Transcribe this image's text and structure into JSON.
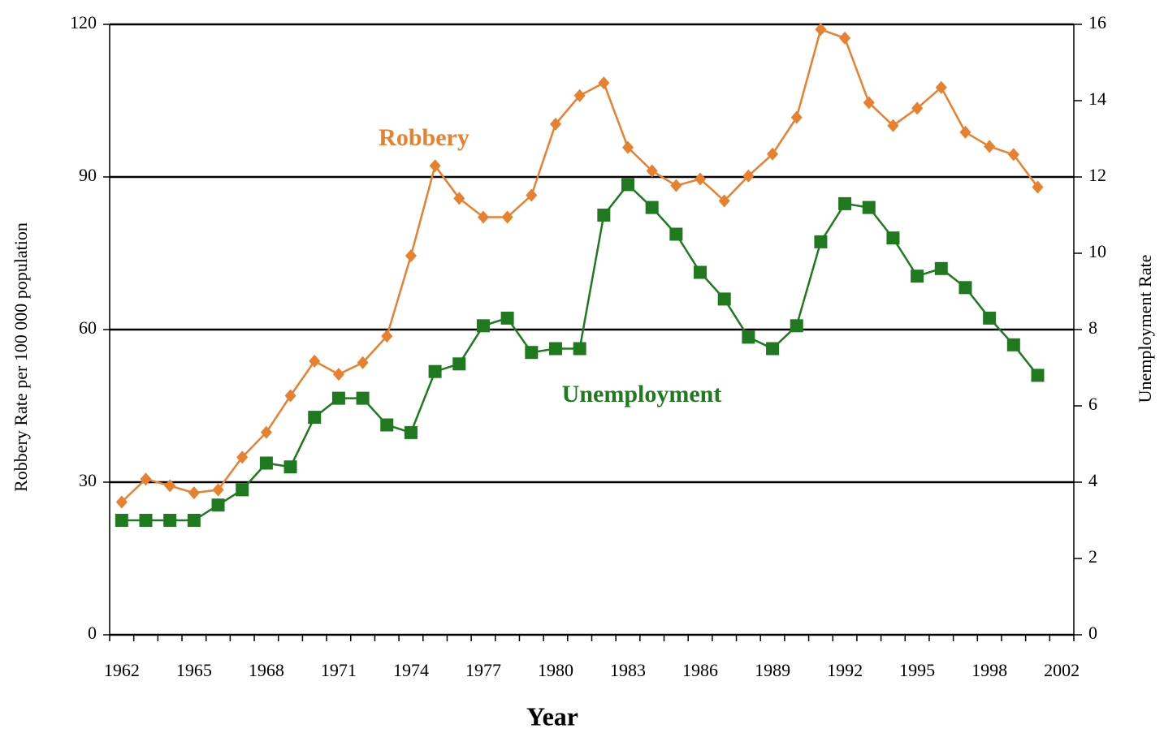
{
  "chart_data": {
    "type": "line",
    "x_label": "Year",
    "y_label": "Robbery Rate per 100 000 population",
    "y2_label": "Unemployment  Rate",
    "annotations": [
      "Robbery",
      "Unemployment"
    ],
    "categories": [
      "1962",
      null,
      null,
      "1965",
      null,
      null,
      "1968",
      null,
      null,
      "1971",
      null,
      null,
      "1974",
      null,
      null,
      "1977",
      null,
      null,
      "1980",
      null,
      null,
      "1983",
      null,
      null,
      "1986",
      null,
      null,
      "1989",
      null,
      null,
      "1992",
      null,
      null,
      "1995",
      null,
      null,
      "1998",
      null,
      null,
      "2002"
    ],
    "series": [
      {
        "name": "Robbery",
        "color": "#e8802e",
        "marker": "diamond",
        "values": [
          26.1,
          30.6,
          29.3,
          27.9,
          28.5,
          34.9,
          39.8,
          47,
          53.8,
          51.2,
          53.5,
          58.7,
          74.5,
          92.2,
          85.8,
          82.1,
          82.1,
          86.4,
          100.4,
          106,
          108.5,
          95.8,
          91.2,
          88.3,
          89.6,
          85.3,
          90.2,
          94.5,
          101.7,
          119,
          117.3,
          104.6,
          100.1,
          103.5,
          107.6,
          98.8,
          96,
          94.4,
          88,
          null
        ]
      },
      {
        "name": "Unemployment",
        "color": "#1f7a1f",
        "marker": "square",
        "axis": "y2",
        "values": [
          3.0,
          3.0,
          3.0,
          3.0,
          3.4,
          3.8,
          4.5,
          4.4,
          5.7,
          6.2,
          6.2,
          5.5,
          5.3,
          6.9,
          7.1,
          8.1,
          8.3,
          7.4,
          7.5,
          7.5,
          11.0,
          11.8,
          11.2,
          10.5,
          9.5,
          8.8,
          7.8,
          7.5,
          8.1,
          10.3,
          11.3,
          11.2,
          10.4,
          9.4,
          9.6,
          9.1,
          8.3,
          7.6,
          6.8,
          null
        ]
      }
    ],
    "ylim": [
      0,
      120
    ],
    "yticks": [
      0,
      30,
      60,
      90,
      120
    ],
    "y2lim": [
      0,
      16
    ],
    "y2ticks": [
      0,
      2,
      4,
      6,
      8,
      10,
      12,
      14,
      16
    ],
    "grid": true
  }
}
